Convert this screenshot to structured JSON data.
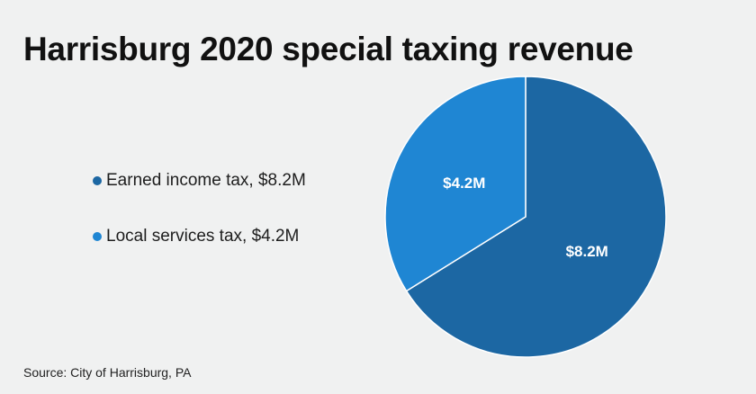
{
  "title": "Harrisburg 2020 special taxing revenue",
  "source": "Source: City of Harrisburg, PA",
  "chart_data": {
    "type": "pie",
    "title": "Harrisburg 2020 special taxing revenue",
    "slices": [
      {
        "name": "Earned income tax, $8.2M",
        "value": 8.2,
        "data_label": "$8.2M",
        "color": "#1c67a3"
      },
      {
        "name": "Local services tax, $4.2M",
        "value": 4.2,
        "data_label": "$4.2M",
        "color": "#1f86d3"
      }
    ],
    "legend_placement": "left",
    "start_angle": "top, clockwise"
  }
}
